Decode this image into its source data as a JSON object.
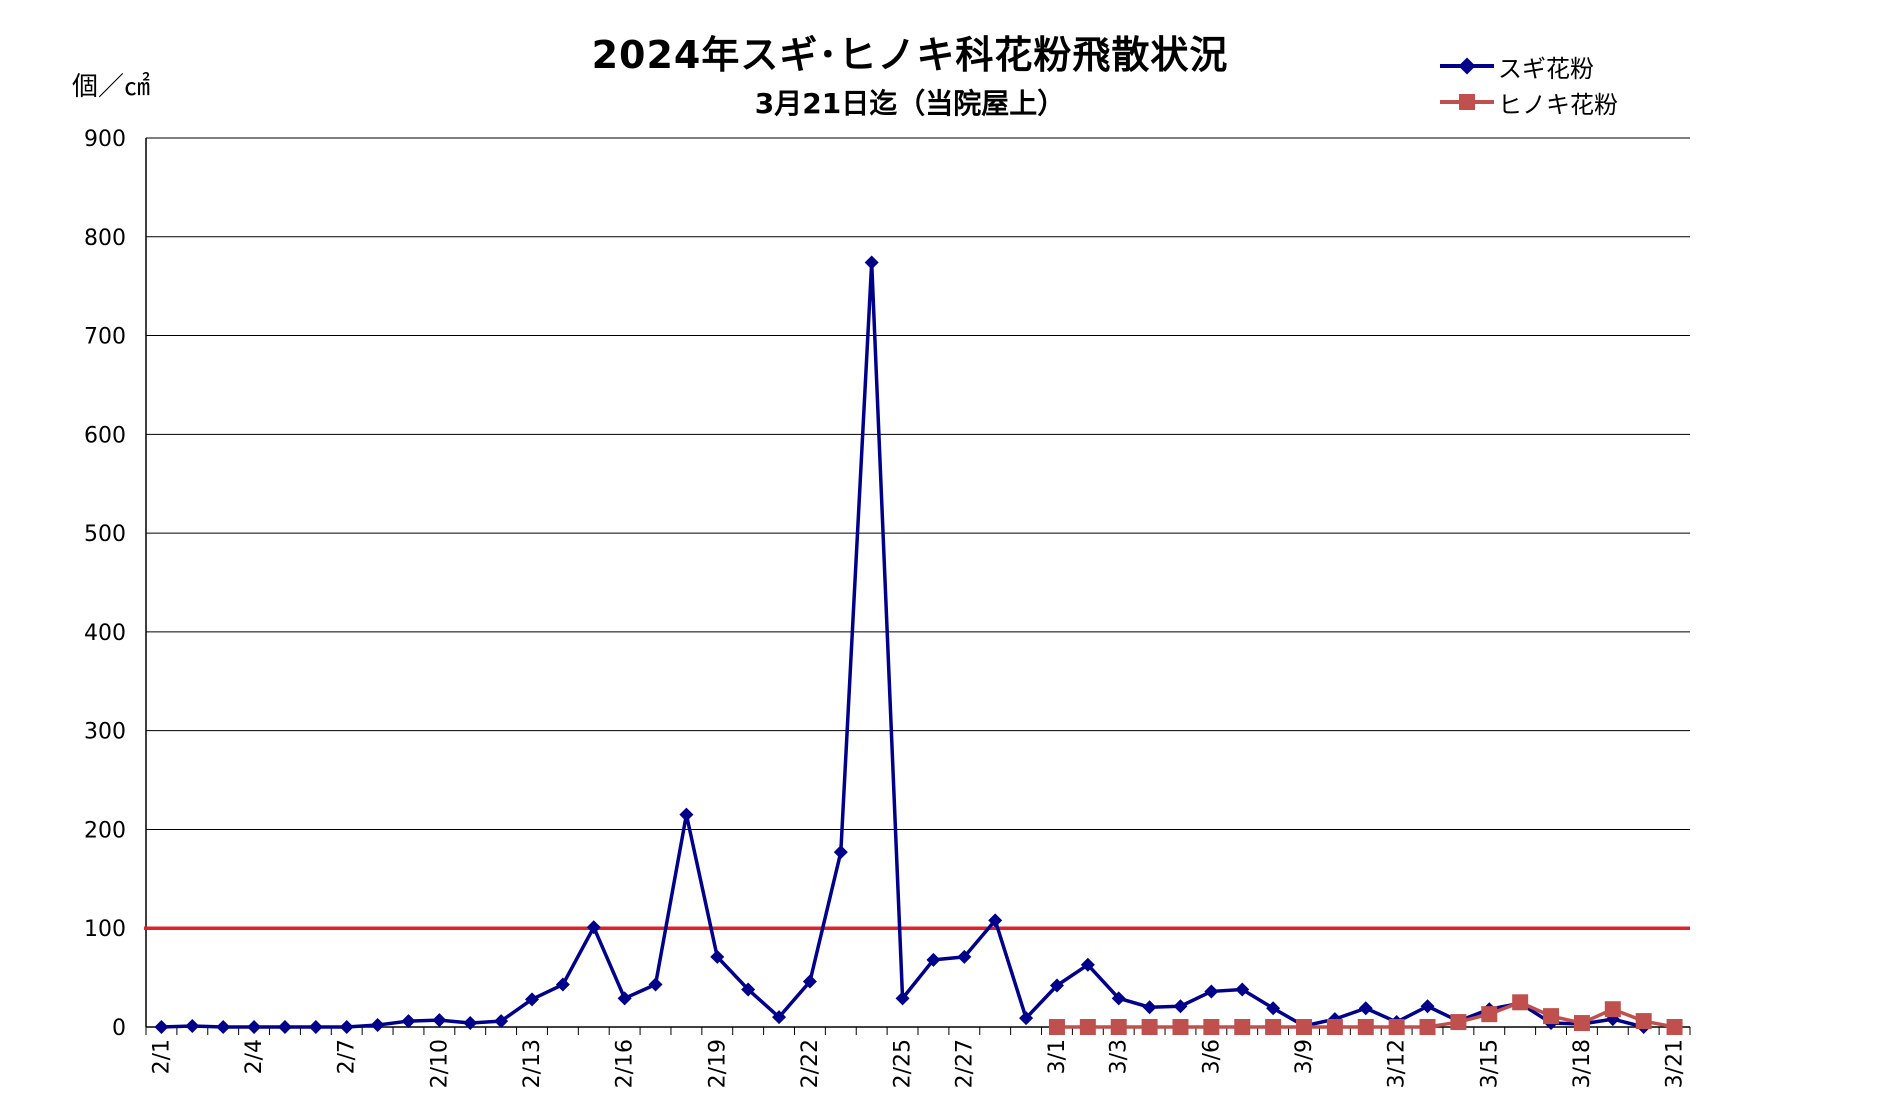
{
  "chart_data": {
    "type": "line",
    "title": "2024年スギ･ヒノキ科花粉飛散状況",
    "subtitle": "3月21日迄（当院屋上）",
    "ylabel": "個／㎠",
    "ylim": [
      0,
      900
    ],
    "yticks": [
      0,
      100,
      200,
      300,
      400,
      500,
      600,
      700,
      800,
      900
    ],
    "grid": true,
    "legend_position": "top-right",
    "threshold": 100,
    "threshold_color": "#e0232b",
    "x": [
      "2/1",
      "2/2",
      "2/3",
      "2/4",
      "2/5",
      "2/6",
      "2/7",
      "2/8",
      "2/9",
      "2/10",
      "2/11",
      "2/12",
      "2/13",
      "2/14",
      "2/15",
      "2/16",
      "2/17",
      "2/18",
      "2/19",
      "2/20",
      "2/21",
      "2/22",
      "2/23",
      "2/24",
      "2/25",
      "2/26",
      "2/27",
      "2/28",
      "2/29",
      "3/1",
      "3/2",
      "3/3",
      "3/4",
      "3/5",
      "3/6",
      "3/7",
      "3/8",
      "3/9",
      "3/10",
      "3/11",
      "3/12",
      "3/13",
      "3/14",
      "3/15",
      "3/16",
      "3/17",
      "3/18",
      "3/19",
      "3/20",
      "3/21"
    ],
    "xtick_labels": [
      "2/1",
      "2/4",
      "2/7",
      "2/10",
      "2/13",
      "2/16",
      "2/19",
      "2/22",
      "2/25",
      "2/27",
      "3/1",
      "3/3",
      "3/6",
      "3/9",
      "3/12",
      "3/15",
      "3/18",
      "3/21"
    ],
    "series": [
      {
        "name": "スギ花粉",
        "color": "#00008b",
        "marker": "diamond",
        "values": [
          0,
          1,
          0,
          0,
          0,
          0,
          0,
          2,
          6,
          7,
          4,
          6,
          28,
          43,
          101,
          29,
          43,
          215,
          71,
          38,
          10,
          46,
          177,
          774,
          29,
          68,
          71,
          108,
          9,
          42,
          63,
          29,
          20,
          21,
          36,
          38,
          19,
          1,
          8,
          19,
          5,
          21,
          6,
          18,
          24,
          4,
          3,
          8,
          0,
          null
        ]
      },
      {
        "name": "ヒノキ花粉",
        "color": "#c0504d",
        "marker": "square",
        "values": [
          null,
          null,
          null,
          null,
          null,
          null,
          null,
          null,
          null,
          null,
          null,
          null,
          null,
          null,
          null,
          null,
          null,
          null,
          null,
          null,
          null,
          null,
          null,
          null,
          null,
          null,
          null,
          null,
          null,
          0,
          0,
          0,
          0,
          0,
          0,
          0,
          0,
          0,
          0,
          0,
          0,
          0,
          5,
          13,
          25,
          11,
          4,
          18,
          6,
          0
        ]
      }
    ]
  }
}
